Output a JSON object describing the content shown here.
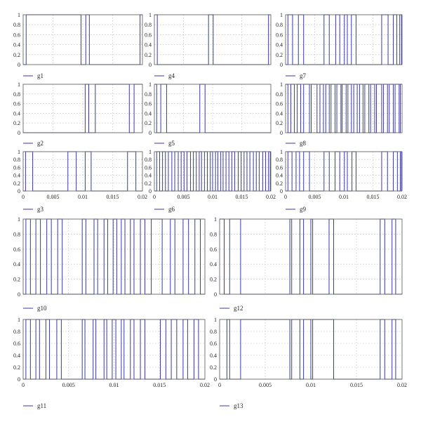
{
  "colors": {
    "signal": "#3a3aa8",
    "frame": "#555555",
    "grid": "#b8b8b8"
  },
  "chart_data": [
    {
      "type": "line",
      "step": true,
      "series": [
        {
          "name": "g1",
          "transitions": [
            0.0005,
            0.0097,
            0.0105,
            0.0111,
            0.0196
          ]
        }
      ],
      "initial": 0,
      "xlim": [
        0,
        0.02
      ],
      "ylim": [
        0,
        1
      ],
      "yticks": [
        "0",
        "0.2",
        "0.4",
        "0.6",
        "0.8",
        "1"
      ],
      "xticks": [],
      "grid": true,
      "legend": "bottom-left"
    },
    {
      "type": "line",
      "step": true,
      "series": [
        {
          "name": "g4",
          "transitions": [
            0.0005,
            0.0093,
            0.0101,
            0.0196
          ]
        }
      ],
      "initial": 1,
      "xlim": [
        0,
        0.02
      ],
      "ylim": [
        0,
        1
      ],
      "yticks": [
        "0",
        "0.2",
        "0.4",
        "0.6",
        "0.8",
        "1"
      ],
      "xticks": [],
      "grid": true,
      "legend": "bottom-left"
    },
    {
      "type": "line",
      "step": true,
      "series": [
        {
          "name": "g7",
          "transitions": [
            0.0004,
            0.0012,
            0.0022,
            0.0031,
            0.0066,
            0.0075,
            0.0086,
            0.0093,
            0.0101,
            0.0106,
            0.0113,
            0.0121,
            0.0165,
            0.0176,
            0.0185,
            0.0191,
            0.0196,
            0.0199
          ]
        }
      ],
      "initial": 0,
      "xlim": [
        0,
        0.02
      ],
      "ylim": [
        0,
        1
      ],
      "yticks": [
        "0",
        "0.2",
        "0.4",
        "0.6",
        "0.8",
        "1"
      ],
      "xticks": [],
      "grid": true,
      "legend": "bottom-left"
    },
    {
      "type": "line",
      "step": true,
      "series": [
        {
          "name": "g2",
          "transitions": [
            0.0104,
            0.011,
            0.0121,
            0.0178,
            0.0186
          ]
        }
      ],
      "initial": 0,
      "xlim": [
        0,
        0.02
      ],
      "ylim": [
        0,
        1
      ],
      "yticks": [
        "0",
        "0.2",
        "0.4",
        "0.6",
        "0.8",
        "1"
      ],
      "xticks": [],
      "grid": true,
      "legend": "bottom-left"
    },
    {
      "type": "line",
      "step": true,
      "series": [
        {
          "name": "g5",
          "transitions": [
            0.0004,
            0.0011,
            0.0021,
            0.0078,
            0.0087
          ]
        }
      ],
      "initial": 1,
      "xlim": [
        0,
        0.02
      ],
      "ylim": [
        0,
        1
      ],
      "yticks": [
        "0",
        "0.2",
        "0.4",
        "0.6",
        "0.8",
        "1"
      ],
      "xticks": [],
      "grid": true,
      "legend": "bottom-left"
    },
    {
      "type": "line",
      "step": true,
      "series": [
        {
          "name": "g8",
          "transitions": [
            0.0004,
            0.0009,
            0.0015,
            0.002,
            0.0026,
            0.0031,
            0.0041,
            0.0044,
            0.0054,
            0.0059,
            0.0065,
            0.0069,
            0.0075,
            0.0078,
            0.0085,
            0.0088,
            0.0095,
            0.0097,
            0.0104,
            0.0107,
            0.0113,
            0.0117,
            0.0123,
            0.0127,
            0.0133,
            0.0136,
            0.0143,
            0.0146,
            0.0153,
            0.0156,
            0.0165,
            0.0168,
            0.0175,
            0.0178,
            0.0185,
            0.0188,
            0.0195,
            0.0197
          ]
        }
      ],
      "initial": 1,
      "xlim": [
        0,
        0.02
      ],
      "ylim": [
        0,
        1
      ],
      "yticks": [
        "0",
        "0.2",
        "0.4",
        "0.6",
        "0.8",
        "1"
      ],
      "xticks": [],
      "grid": true,
      "legend": "bottom-left"
    },
    {
      "type": "line",
      "step": true,
      "series": [
        {
          "name": "g3",
          "transitions": [
            0.0004,
            0.0016,
            0.0075,
            0.0089,
            0.0104,
            0.0114,
            0.0175,
            0.0189
          ]
        }
      ],
      "initial": 0,
      "xlim": [
        0,
        0.02
      ],
      "ylim": [
        0,
        1
      ],
      "yticks": [
        "0",
        "0.2",
        "0.4",
        "0.6",
        "0.8",
        "1"
      ],
      "xticks": [
        "0",
        "0.005",
        "0.01",
        "0.015",
        "0.02"
      ],
      "grid": true,
      "legend": "bottom-left"
    },
    {
      "type": "line",
      "step": true,
      "series": [
        {
          "name": "g6",
          "transitions": [
            0.0004,
            0.0009,
            0.0014,
            0.0019,
            0.0024,
            0.003,
            0.0035,
            0.0041,
            0.0046,
            0.0051,
            0.0056,
            0.0062,
            0.0067,
            0.0072,
            0.0077,
            0.0081,
            0.0086,
            0.0091,
            0.0096,
            0.01,
            0.0105,
            0.0109,
            0.0114,
            0.0118,
            0.0123,
            0.0128,
            0.0133,
            0.0138,
            0.0144,
            0.0149,
            0.0154,
            0.0159,
            0.0164,
            0.017,
            0.0175,
            0.018,
            0.0186,
            0.0191,
            0.0196,
            0.0199
          ]
        }
      ],
      "initial": 0,
      "xlim": [
        0,
        0.02
      ],
      "ylim": [
        0,
        1
      ],
      "yticks": [
        "0",
        "0.2",
        "0.4",
        "0.6",
        "0.8",
        "1"
      ],
      "xticks": [
        "0",
        "0.005",
        "0.01",
        "0.015",
        "0.02"
      ],
      "grid": true,
      "legend": "bottom-left"
    },
    {
      "type": "line",
      "step": true,
      "series": [
        {
          "name": "g9",
          "transitions": [
            0.0004,
            0.0011,
            0.0018,
            0.0024,
            0.0031,
            0.0041,
            0.0066,
            0.0075,
            0.0085,
            0.0093,
            0.0101,
            0.0106,
            0.0114,
            0.0121,
            0.0165,
            0.0175,
            0.0185,
            0.0192,
            0.0197,
            0.0199
          ]
        }
      ],
      "initial": 0,
      "xlim": [
        0,
        0.02
      ],
      "ylim": [
        0,
        1
      ],
      "yticks": [
        "0",
        "0.2",
        "0.4",
        "0.6",
        "0.8",
        "1"
      ],
      "xticks": [
        "0",
        "0.005",
        "0.01",
        "0.015",
        "0.02"
      ],
      "grid": true,
      "legend": "bottom-left"
    },
    {
      "type": "line",
      "step": true,
      "series": [
        {
          "name": "g10",
          "transitions": [
            0.0003,
            0.0008,
            0.0014,
            0.0019,
            0.0026,
            0.0031,
            0.0038,
            0.0043,
            0.0065,
            0.0069,
            0.0078,
            0.0082,
            0.0089,
            0.0093,
            0.0099,
            0.0103,
            0.0108,
            0.0112,
            0.0118,
            0.0122,
            0.0129,
            0.0134,
            0.0141,
            0.0153,
            0.0162,
            0.0167,
            0.0176,
            0.0182,
            0.0189,
            0.0195
          ]
        }
      ],
      "initial": 0,
      "xlim": [
        0,
        0.02
      ],
      "ylim": [
        0,
        1
      ],
      "yticks": [
        "0",
        "0.2",
        "0.4",
        "0.6",
        "0.8",
        "1"
      ],
      "xticks": [],
      "grid": true,
      "legend": "bottom-left"
    },
    {
      "type": "line",
      "step": true,
      "series": [
        {
          "name": "g12",
          "transitions": [
            0.0005,
            0.0011,
            0.0023,
            0.0077,
            0.0079,
            0.0088,
            0.0092,
            0.01,
            0.0102,
            0.012,
            0.0125,
            0.0176,
            0.0181,
            0.0189,
            0.0193
          ]
        }
      ],
      "initial": 1,
      "xlim": [
        0,
        0.02
      ],
      "ylim": [
        0,
        1
      ],
      "yticks": [
        "0",
        "0.2",
        "0.4",
        "0.6",
        "0.8",
        "1"
      ],
      "xticks": [],
      "grid": true,
      "legend": "bottom-left"
    },
    {
      "type": "line",
      "step": true,
      "series": [
        {
          "name": "g11",
          "transitions": [
            0.0003,
            0.0008,
            0.0014,
            0.0018,
            0.0025,
            0.0029,
            0.0037,
            0.0042,
            0.0065,
            0.0068,
            0.0077,
            0.008,
            0.0089,
            0.0092,
            0.0098,
            0.0102,
            0.0108,
            0.0111,
            0.0118,
            0.0122,
            0.0129,
            0.0134,
            0.0151,
            0.0157,
            0.0163,
            0.0169,
            0.0176,
            0.0181,
            0.0188,
            0.0193
          ]
        }
      ],
      "initial": 0,
      "xlim": [
        0,
        0.02
      ],
      "ylim": [
        0,
        1
      ],
      "yticks": [
        "0",
        "0.2",
        "0.4",
        "0.6",
        "0.8",
        "1"
      ],
      "xticks": [
        "0",
        "0.005",
        "0.01",
        "0.015",
        "0.02"
      ],
      "grid": true,
      "legend": "bottom-left"
    },
    {
      "type": "line",
      "step": true,
      "series": [
        {
          "name": "g13",
          "transitions": [
            0.0008,
            0.0011,
            0.0023,
            0.0077,
            0.0079,
            0.0088,
            0.0092,
            0.01,
            0.0102,
            0.0125,
            0.0176,
            0.0181,
            0.0189,
            0.0193
          ]
        }
      ],
      "initial": 0,
      "xlim": [
        0,
        0.02
      ],
      "ylim": [
        0,
        1
      ],
      "yticks": [
        "0",
        "0.2",
        "0.4",
        "0.6",
        "0.8",
        "1"
      ],
      "xticks": [
        "0",
        "0.005",
        "0.01",
        "0.015",
        "0.02"
      ],
      "grid": true,
      "legend": "bottom-left"
    }
  ]
}
